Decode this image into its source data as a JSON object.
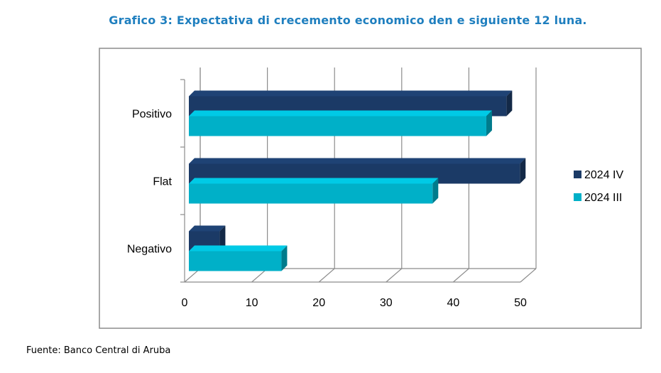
{
  "title": "Grafico 3: Expectativa di crecemento economico den e siguiente 12 luna.",
  "source": "Fuente: Banco Central di Aruba",
  "colors": {
    "series_dark": "#1b3a66",
    "series_light": "#00b0c8",
    "title": "#1f7fbf"
  },
  "chart_data": {
    "type": "bar",
    "orientation": "horizontal",
    "three_d": true,
    "categories": [
      "Positivo",
      "Flat",
      "Negativo"
    ],
    "series": [
      {
        "name": "2024 IV",
        "values": [
          47.5,
          49.5,
          4.8
        ]
      },
      {
        "name": "2024 III",
        "values": [
          44.5,
          36.5,
          14
        ]
      }
    ],
    "xticks": [
      "0",
      "10",
      "20",
      "30",
      "40",
      "50"
    ],
    "xlim": [
      0,
      50
    ],
    "grid": true,
    "legend": "right"
  }
}
